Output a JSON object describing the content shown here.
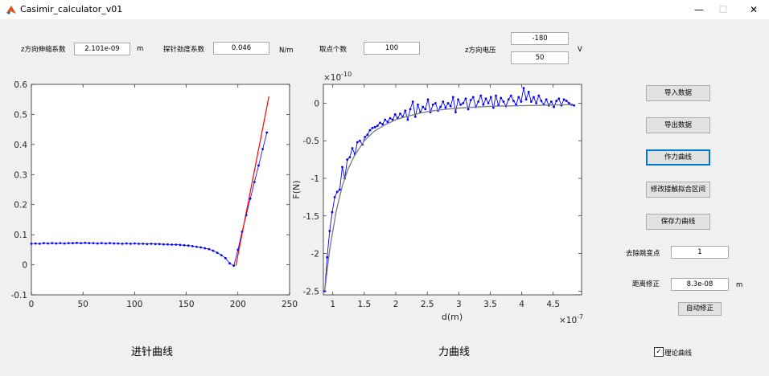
{
  "window": {
    "title": "Casimir_calculator_v01",
    "minimize": "—",
    "maximize": "☐",
    "close": "✕"
  },
  "params": {
    "z_coef_label": "z方向伸缩系数",
    "z_coef_value": "2.101e-09",
    "z_coef_unit": "m",
    "stiffness_label": "探针劲度系数",
    "stiffness_value": "0.046",
    "stiffness_unit": "N/m",
    "points_label": "取点个数",
    "points_value": "100",
    "voltage_label": "z方向电压",
    "voltage_value_1": "-180",
    "voltage_value_2": "50",
    "voltage_unit": "V"
  },
  "buttons": {
    "import": "导入数据",
    "export": "导出数据",
    "plot_force": "作力曲线",
    "modify_range": "修改接触拟合区间",
    "save_force": "保存力曲线",
    "auto_correct": "自动修正"
  },
  "right_panel": {
    "remove_jump_label": "去除跳变点",
    "remove_jump_value": "1",
    "distance_corr_label": "距离修正",
    "distance_corr_value": "8.3e-08",
    "distance_corr_unit": "m",
    "theory_curve_label": "理论曲线",
    "theory_curve_checked": true
  },
  "captions": {
    "left": "进针曲线",
    "right": "力曲线"
  },
  "chart_data": [
    {
      "type": "line",
      "xlim": [
        0,
        250
      ],
      "ylim": [
        -0.1,
        0.6
      ],
      "xticks": [
        "0",
        "50",
        "100",
        "150",
        "200",
        "250"
      ],
      "yticks": [
        "-0.1",
        "0",
        "0.1",
        "0.2",
        "0.3",
        "0.4",
        "0.5",
        "0.6"
      ],
      "colors": {
        "points": "#0000ff",
        "fit": "#ff0000"
      },
      "series": [
        {
          "x": [
            0,
            4,
            8,
            12,
            16,
            20,
            24,
            28,
            32,
            36,
            40,
            44,
            48,
            52,
            56,
            60,
            64,
            68,
            72,
            76,
            80,
            84,
            88,
            92,
            96,
            100,
            104,
            108,
            112,
            116,
            120,
            124,
            128,
            132,
            136,
            140,
            144,
            148,
            152,
            156,
            160,
            164,
            168,
            172,
            176,
            180,
            184,
            188,
            192,
            196,
            200,
            204,
            208,
            212,
            216,
            220,
            224,
            228
          ],
          "y": [
            0.07,
            0.071,
            0.07,
            0.072,
            0.071,
            0.072,
            0.071,
            0.072,
            0.071,
            0.072,
            0.072,
            0.073,
            0.072,
            0.073,
            0.072,
            0.072,
            0.071,
            0.072,
            0.071,
            0.072,
            0.071,
            0.071,
            0.07,
            0.071,
            0.07,
            0.071,
            0.07,
            0.07,
            0.069,
            0.07,
            0.069,
            0.069,
            0.068,
            0.068,
            0.067,
            0.067,
            0.066,
            0.065,
            0.064,
            0.062,
            0.06,
            0.058,
            0.055,
            0.052,
            0.047,
            0.04,
            0.032,
            0.022,
            0.005,
            -0.003,
            0.05,
            0.11,
            0.165,
            0.22,
            0.275,
            0.33,
            0.385,
            0.44
          ]
        },
        {
          "x": [
            198,
            230
          ],
          "y": [
            -0.003,
            0.56
          ]
        }
      ]
    },
    {
      "type": "line",
      "xlabel": "d(m)",
      "ylabel": "F(N)",
      "x_exponent": "×10^-7",
      "y_exponent": "×10^-10",
      "xlim": [
        0.85,
        4.95
      ],
      "ylim": [
        -2.55,
        0.25
      ],
      "xticks": [
        "1",
        "1.5",
        "2",
        "2.5",
        "3",
        "3.5",
        "4",
        "4.5"
      ],
      "yticks": [
        "-2.5",
        "-2",
        "-1.5",
        "-1",
        "-0.5",
        "0"
      ],
      "colors": {
        "measured": "#0000ff",
        "theory": "#7f7f7f"
      },
      "series": [
        {
          "x": [
            0.87,
            0.91,
            0.95,
            0.99,
            1.03,
            1.07,
            1.11,
            1.15,
            1.19,
            1.23,
            1.27,
            1.31,
            1.35,
            1.39,
            1.43,
            1.47,
            1.51,
            1.55,
            1.59,
            1.63,
            1.67,
            1.71,
            1.75,
            1.79,
            1.83,
            1.87,
            1.91,
            1.95,
            1.99,
            2.03,
            2.07,
            2.11,
            2.15,
            2.19,
            2.23,
            2.27,
            2.31,
            2.35,
            2.39,
            2.43,
            2.47,
            2.51,
            2.55,
            2.59,
            2.63,
            2.67,
            2.71,
            2.75,
            2.79,
            2.83,
            2.87,
            2.91,
            2.95,
            2.99,
            3.03,
            3.07,
            3.11,
            3.15,
            3.19,
            3.23,
            3.27,
            3.31,
            3.35,
            3.39,
            3.43,
            3.47,
            3.51,
            3.55,
            3.59,
            3.63,
            3.67,
            3.71,
            3.75,
            3.79,
            3.83,
            3.87,
            3.91,
            3.95,
            3.99,
            4.03,
            4.07,
            4.11,
            4.15,
            4.19,
            4.23,
            4.27,
            4.31,
            4.35,
            4.39,
            4.43,
            4.47,
            4.51,
            4.55,
            4.59,
            4.63,
            4.67,
            4.71,
            4.75,
            4.79,
            4.83
          ],
          "y": [
            -2.5,
            -2.05,
            -1.7,
            -1.45,
            -1.25,
            -1.18,
            -1.15,
            -0.85,
            -1.0,
            -0.75,
            -0.72,
            -0.6,
            -0.68,
            -0.52,
            -0.5,
            -0.55,
            -0.45,
            -0.42,
            -0.36,
            -0.33,
            -0.32,
            -0.3,
            -0.26,
            -0.28,
            -0.22,
            -0.25,
            -0.2,
            -0.22,
            -0.15,
            -0.2,
            -0.14,
            -0.18,
            -0.1,
            -0.22,
            -0.08,
            0.02,
            -0.18,
            -0.02,
            -0.12,
            -0.05,
            -0.08,
            0.05,
            -0.12,
            -0.02,
            0.0,
            -0.1,
            -0.05,
            0.02,
            -0.06,
            0.0,
            -0.04,
            0.08,
            -0.12,
            0.05,
            -0.02,
            0.0,
            0.06,
            -0.08,
            0.04,
            0.08,
            -0.05,
            0.02,
            0.1,
            -0.02,
            0.06,
            0.0,
            0.08,
            -0.06,
            0.1,
            -0.03,
            0.07,
            0.02,
            -0.04,
            0.05,
            0.1,
            0.03,
            -0.02,
            0.08,
            0.02,
            0.2,
            0.05,
            0.15,
            0.02,
            0.08,
            0.0,
            0.1,
            0.03,
            -0.02,
            0.05,
            -0.03,
            0.02,
            -0.05,
            0.03,
            0.06,
            -0.03,
            0.05,
            0.03,
            0.0,
            -0.02,
            -0.03
          ]
        },
        {
          "x": [
            0.87,
            0.95,
            1.05,
            1.15,
            1.25,
            1.35,
            1.5,
            1.65,
            1.8,
            2.0,
            2.2,
            2.4,
            2.6,
            2.8,
            3.0,
            3.3,
            3.6,
            3.9,
            4.2,
            4.5,
            4.8
          ],
          "y": [
            -2.5,
            -1.95,
            -1.45,
            -1.1,
            -0.86,
            -0.69,
            -0.5,
            -0.38,
            -0.3,
            -0.22,
            -0.17,
            -0.13,
            -0.1,
            -0.08,
            -0.065,
            -0.05,
            -0.04,
            -0.035,
            -0.03,
            -0.025,
            -0.02
          ]
        }
      ]
    }
  ]
}
